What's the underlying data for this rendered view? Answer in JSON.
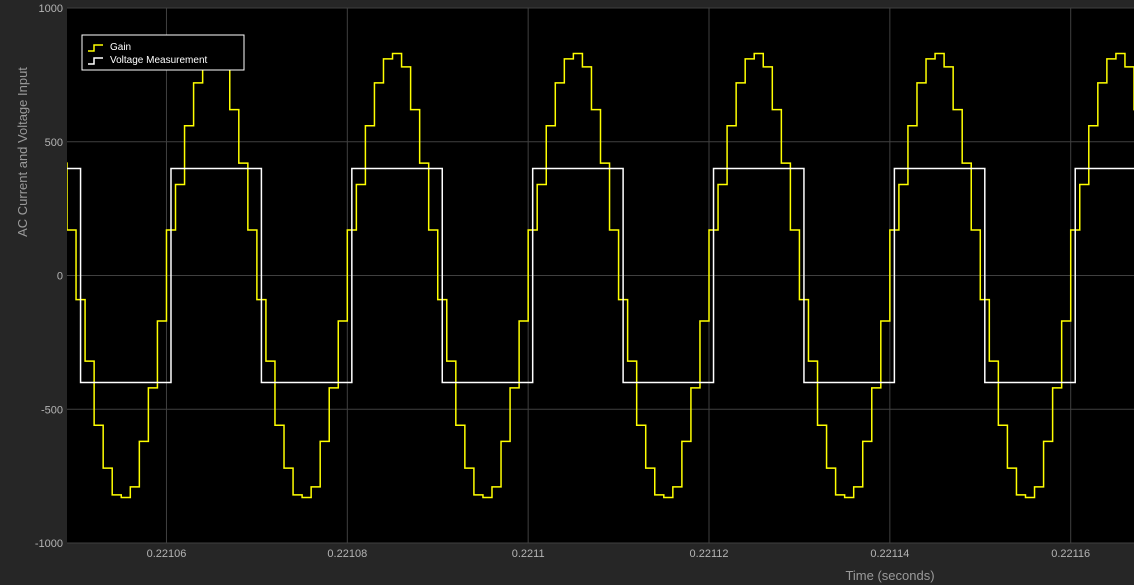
{
  "chart_data": {
    "type": "line",
    "title": "",
    "xlabel": "Time (seconds)",
    "ylabel": "AC Current and Voltage Input",
    "xlim": [
      0.221049,
      0.221167
    ],
    "ylim": [
      -1000,
      1000
    ],
    "x_ticks": [
      0.22106,
      0.22108,
      0.2211,
      0.22112,
      0.22114,
      0.22116
    ],
    "x_tick_labels": [
      "0.22106",
      "0.22108",
      "0.2211",
      "0.22112",
      "0.22114",
      "0.22116"
    ],
    "y_ticks": [
      -1000,
      -500,
      0,
      500,
      1000
    ],
    "y_tick_labels": [
      "-1000",
      "-500",
      "0",
      "500",
      "1000"
    ],
    "grid": true,
    "legend_position": "top-left",
    "period": 2e-05,
    "series": [
      {
        "name": "Gain",
        "color": "#ffff00",
        "step": true,
        "period_start": 0.221051,
        "step_duration": 1e-06,
        "period_values": [
          -320,
          -560,
          -720,
          -820,
          -830,
          -790,
          -620,
          -420,
          -170,
          170,
          340,
          560,
          720,
          810,
          830,
          780,
          620,
          420,
          170,
          -90
        ]
      },
      {
        "name": "Voltage Measurement",
        "color": "#ffffff",
        "step": true,
        "levels": [
          -400,
          400
        ],
        "first_rise": 0.2210605,
        "half_period": 1e-05
      }
    ]
  }
}
